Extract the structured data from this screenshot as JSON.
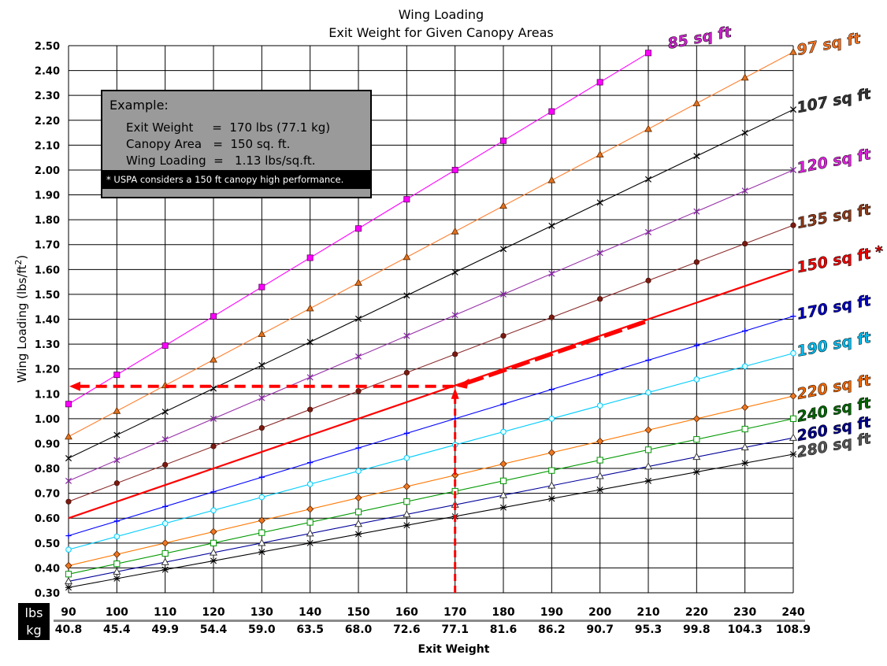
{
  "chart_data": {
    "type": "line",
    "title": "Wing Loading",
    "subtitle": "Exit Weight for Given Canopy Areas",
    "xlabel": "Exit Weight",
    "ylabel": "Wing Loading (lbs/ft2)",
    "x_unit_labels": [
      "lbs",
      "kg"
    ],
    "x": [
      90,
      100,
      110,
      120,
      130,
      140,
      150,
      160,
      170,
      180,
      190,
      200,
      210,
      220,
      230,
      240
    ],
    "x_kg_labels": [
      "40.8",
      "45.4",
      "49.9",
      "54.4",
      "59.0",
      "63.5",
      "68.0",
      "72.6",
      "77.1",
      "81.6",
      "86.2",
      "90.7",
      "95.3",
      "99.8",
      "104.3",
      "108.9"
    ],
    "xlim": [
      90,
      240
    ],
    "ylim": [
      0.3,
      2.5
    ],
    "yticks": [
      "2.50",
      "2.40",
      "2.30",
      "2.20",
      "2.10",
      "2.00",
      "1.90",
      "1.80",
      "1.70",
      "1.60",
      "1.50",
      "1.40",
      "1.30",
      "1.20",
      "1.10",
      "1.00",
      "0.90",
      "0.80",
      "0.70",
      "0.60",
      "0.50",
      "0.40",
      "0.30"
    ],
    "grid": true,
    "series": [
      {
        "name": "85 sq ft",
        "area": 85,
        "x_max": 210,
        "color": "#ff00ff",
        "marker": "square-fill",
        "label_color": "#cc22cc"
      },
      {
        "name": "97 sq ft",
        "area": 97,
        "x_max": 240,
        "color": "#ff8030",
        "marker": "triangle",
        "label_color": "#f07020"
      },
      {
        "name": "107 sq ft",
        "area": 107,
        "x_max": 240,
        "color": "#000000",
        "marker": "x",
        "label_color": "#333333"
      },
      {
        "name": "120 sq ft",
        "area": 120,
        "x_max": 240,
        "color": "#9933aa",
        "marker": "x",
        "label_color": "#dd22dd"
      },
      {
        "name": "135 sq ft",
        "area": 135,
        "x_max": 240,
        "color": "#8b2a2a",
        "marker": "circle",
        "label_color": "#8b3a1a"
      },
      {
        "name": "150 sq ft *",
        "area": 150,
        "x_max": 240,
        "color": "#ff0000",
        "marker": "none",
        "label_color": "#ee0000"
      },
      {
        "name": "170 sq ft",
        "area": 170,
        "x_max": 240,
        "color": "#0000ff",
        "marker": "cross",
        "label_color": "#0000bb"
      },
      {
        "name": "190 sq ft",
        "area": 190,
        "x_max": 240,
        "color": "#00ccff",
        "marker": "circle-open",
        "label_color": "#00bbee"
      },
      {
        "name": "220 sq ft",
        "area": 220,
        "x_max": 240,
        "color": "#ff7700",
        "marker": "diamond",
        "label_color": "#ee6600"
      },
      {
        "name": "240 sq ft",
        "area": 240,
        "x_max": 240,
        "color": "#009900",
        "marker": "square-open",
        "label_color": "#006600"
      },
      {
        "name": "260 sq ft",
        "area": 260,
        "x_max": 240,
        "color": "#000099",
        "marker": "triangle-open",
        "label_color": "#000088"
      },
      {
        "name": "280 sq ft",
        "area": 280,
        "x_max": 240,
        "color": "#000000",
        "marker": "asterisk",
        "label_color": "#555555"
      }
    ],
    "example_path": {
      "exit_weight": 170,
      "wing_loading": 1.13,
      "color": "#ff0000"
    }
  },
  "example_box": {
    "title": "Example:",
    "line1": "Exit Weight     =  170 lbs (77.1 kg)",
    "line2": "Canopy Area   =  150 sq. ft.",
    "line3": "Wing Loading  =   1.13 lbs/sq.ft.",
    "note": "* USPA considers a 150 ft  canopy high performance."
  }
}
